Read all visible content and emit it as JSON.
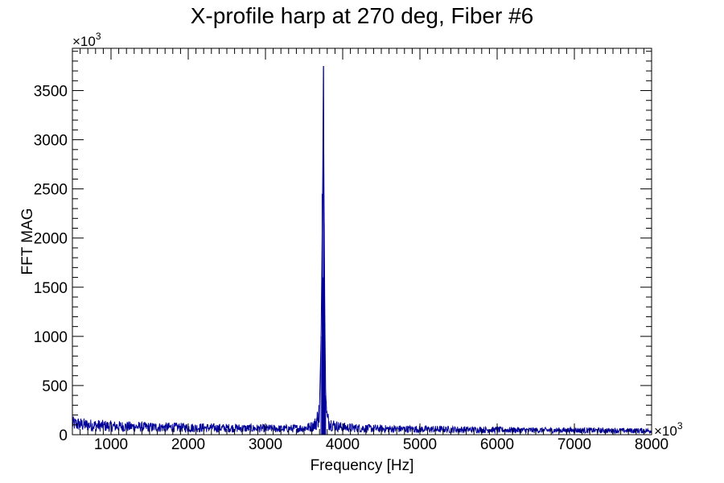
{
  "chart_data": {
    "type": "line",
    "title": "X-profile harp at 270 deg, Fiber #6",
    "xlabel": "Frequency [Hz]",
    "ylabel": "FFT MAG",
    "x_multiplier": {
      "base": "×10",
      "exp": "3"
    },
    "y_multiplier": {
      "base": "×10",
      "exp": "3"
    },
    "xlim": [
      500,
      8000
    ],
    "ylim": [
      0,
      3930
    ],
    "x_ticks": [
      1000,
      2000,
      3000,
      4000,
      5000,
      6000,
      7000,
      8000
    ],
    "x_tick_labels": [
      "1000",
      "2000",
      "3000",
      "4000",
      "5000",
      "6000",
      "7000",
      "8000"
    ],
    "y_ticks": [
      0,
      500,
      1000,
      1500,
      2000,
      2500,
      3000,
      3500
    ],
    "y_tick_labels": [
      "0",
      "500",
      "1000",
      "1500",
      "2000",
      "2500",
      "3000",
      "3500"
    ],
    "grid": false,
    "line_color": "#000099",
    "series": [
      {
        "x": [
          500,
          600,
          700,
          800,
          900,
          1000,
          1200,
          1400,
          1600,
          1800,
          2000,
          2200,
          2400,
          2600,
          2800,
          3000,
          3200,
          3400,
          3500,
          3600,
          3650,
          3700,
          3720,
          3740,
          3750,
          3760,
          3770,
          3780,
          3800,
          3850,
          3900,
          4000,
          4200,
          4500,
          5000,
          5500,
          6000,
          6500,
          7000,
          7500,
          8000
        ],
        "values": [
          150,
          140,
          130,
          125,
          120,
          115,
          110,
          105,
          100,
          100,
          95,
          95,
          90,
          90,
          85,
          85,
          80,
          85,
          90,
          110,
          150,
          300,
          1000,
          2450,
          3750,
          2150,
          1130,
          400,
          200,
          150,
          120,
          100,
          90,
          80,
          75,
          70,
          65,
          60,
          60,
          55,
          55
        ]
      }
    ]
  }
}
